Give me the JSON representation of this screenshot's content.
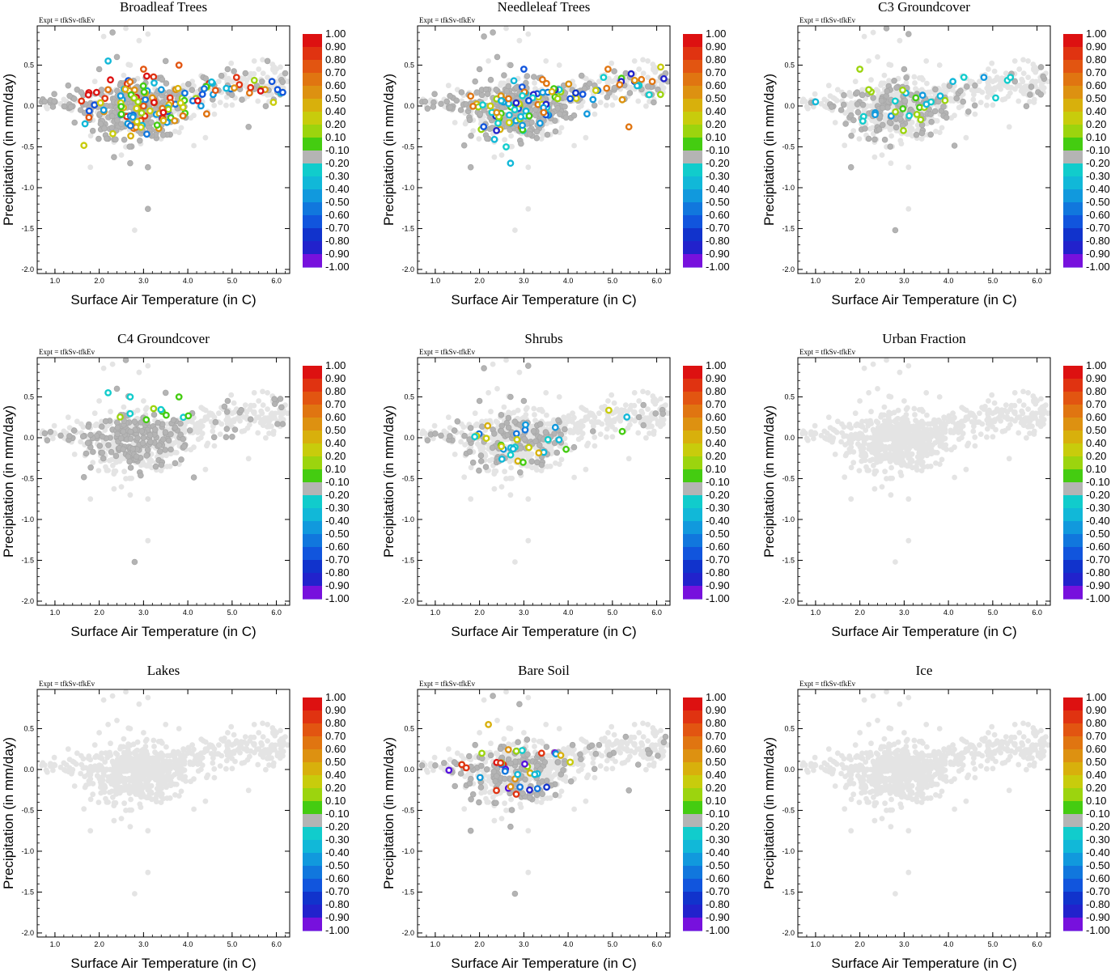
{
  "figure": {
    "experiment_label": "Expt = tfkSv-tfkEv"
  },
  "chart_data": {
    "type": "scatter",
    "xlabel": "Surface Air Temperature (in C)",
    "ylabel": "Precipitation (in mm/day)",
    "xlim": [
      0.6,
      6.3
    ],
    "ylim": [
      -2.05,
      0.98
    ],
    "xticks": [
      "1.0",
      "2.0",
      "3.0",
      "4.0",
      "5.0",
      "6.0"
    ],
    "yticks": [
      "0.5",
      "0.0",
      "-0.5",
      "-1.0",
      "-1.5",
      "-2.0"
    ],
    "colorbar": {
      "labels": [
        "1.00",
        "0.90",
        "0.80",
        "0.70",
        "0.60",
        "0.50",
        "0.40",
        "0.20",
        "0.10",
        "-0.10",
        "-0.20",
        "-0.30",
        "-0.40",
        "-0.50",
        "-0.60",
        "-0.70",
        "-0.80",
        "-0.90",
        "-1.00"
      ],
      "colors": [
        "#dd1111",
        "#e03311",
        "#e25511",
        "#e07511",
        "#dd9111",
        "#d8b00c",
        "#c8cc0c",
        "#9cd40e",
        "#44cc11",
        "#b4b4b4",
        "#11cccc",
        "#11b8d8",
        "#1199dd",
        "#1177dd",
        "#1155dd",
        "#1133cc",
        "#2222cc",
        "#5511dd",
        "#7711dd"
      ]
    },
    "panels": [
      {
        "title": "Broadleaf Trees"
      },
      {
        "title": "Needleleaf Trees"
      },
      {
        "title": "C3 Groundcover"
      },
      {
        "title": "C4 Groundcover"
      },
      {
        "title": "Shrubs"
      },
      {
        "title": "Urban Fraction"
      },
      {
        "title": "Lakes"
      },
      {
        "title": "Bare Soil"
      },
      {
        "title": "Ice"
      }
    ],
    "background_points": [
      [
        0.7,
        0.05
      ],
      [
        0.9,
        0.04
      ],
      [
        1.0,
        0.05
      ],
      [
        1.2,
        0.08
      ],
      [
        1.4,
        0.1
      ],
      [
        1.6,
        0.06
      ],
      [
        1.8,
        0.12
      ],
      [
        1.9,
        0.3
      ],
      [
        2.0,
        0.15
      ],
      [
        2.1,
        -0.05
      ],
      [
        2.2,
        0.2
      ],
      [
        2.3,
        0.1
      ],
      [
        2.4,
        0.0
      ],
      [
        2.5,
        -0.1
      ],
      [
        2.6,
        -0.2
      ],
      [
        2.7,
        0.1
      ],
      [
        2.8,
        0.05
      ],
      [
        2.9,
        -0.15
      ],
      [
        3.0,
        0.0
      ],
      [
        3.1,
        -0.25
      ],
      [
        3.2,
        0.1
      ],
      [
        3.3,
        0.15
      ],
      [
        3.4,
        0.2
      ],
      [
        3.5,
        0.05
      ],
      [
        3.6,
        0.1
      ],
      [
        3.7,
        0.15
      ],
      [
        3.8,
        0.2
      ],
      [
        3.9,
        0.25
      ],
      [
        4.0,
        0.2
      ],
      [
        4.1,
        0.3
      ],
      [
        4.2,
        0.15
      ],
      [
        4.3,
        0.2
      ],
      [
        4.4,
        0.25
      ],
      [
        4.5,
        0.3
      ],
      [
        4.6,
        0.25
      ],
      [
        4.7,
        0.3
      ],
      [
        4.8,
        0.35
      ],
      [
        4.9,
        0.25
      ],
      [
        5.0,
        0.3
      ],
      [
        5.1,
        0.35
      ],
      [
        5.2,
        0.3
      ],
      [
        5.3,
        0.4
      ],
      [
        5.4,
        0.35
      ],
      [
        5.5,
        0.3
      ],
      [
        5.6,
        0.45
      ],
      [
        5.7,
        0.4
      ],
      [
        5.8,
        0.35
      ],
      [
        5.9,
        0.3
      ],
      [
        6.0,
        0.45
      ],
      [
        6.1,
        0.35
      ],
      [
        6.2,
        0.4
      ],
      [
        6.25,
        0.3
      ],
      [
        5.5,
        0.55
      ],
      [
        5.8,
        0.55
      ],
      [
        4.9,
        0.45
      ],
      [
        2.1,
        0.85
      ],
      [
        2.3,
        0.9
      ],
      [
        2.6,
        0.95
      ],
      [
        2.9,
        0.8
      ],
      [
        3.1,
        0.88
      ],
      [
        2.5,
        -0.6
      ],
      [
        2.7,
        -0.7
      ],
      [
        3.1,
        -0.75
      ],
      [
        2.6,
        -0.5
      ],
      [
        2.2,
        -0.4
      ],
      [
        3.3,
        -0.3
      ],
      [
        3.6,
        -0.35
      ],
      [
        1.8,
        -0.75
      ],
      [
        2.8,
        -1.52
      ],
      [
        3.1,
        -1.26
      ],
      [
        2.0,
        0.45
      ],
      [
        2.2,
        0.55
      ],
      [
        2.4,
        0.6
      ],
      [
        2.7,
        0.5
      ],
      [
        3.0,
        0.45
      ],
      [
        3.5,
        0.55
      ],
      [
        3.8,
        0.5
      ],
      [
        1.5,
        0.2
      ],
      [
        1.3,
        0.25
      ],
      [
        4.6,
        -0.1
      ]
    ]
  }
}
